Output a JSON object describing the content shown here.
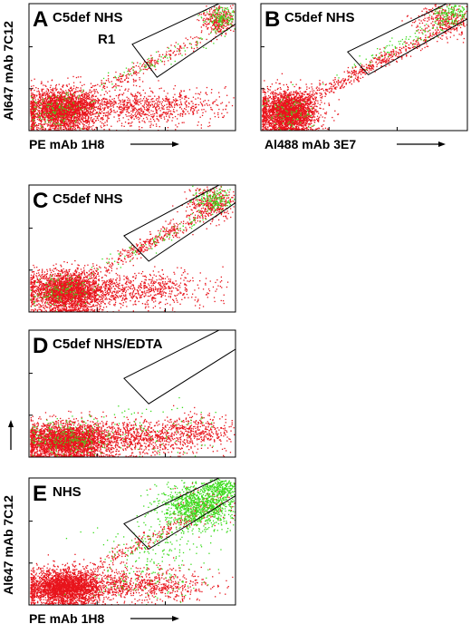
{
  "colors": {
    "red": "#e8141c",
    "green": "#3cdc1e",
    "frame": "#000000",
    "gate": "#000000"
  },
  "chart_data": [
    {
      "type": "scatter",
      "panel_letter": "A",
      "title": "C5def NHS",
      "gate_label": "R1",
      "xlabel": "PE mAb 1H8",
      "ylabel": "Al647 mAb 7C12",
      "xscale": "log",
      "yscale": "log",
      "xlim": [
        0,
        1
      ],
      "ylim": [
        0,
        1
      ],
      "series": [
        {
          "color": "red",
          "clusters": [
            {
              "cx": 0.16,
              "cy": 0.17,
              "sx": 0.09,
              "sy": 0.08,
              "n": 2600
            },
            {
              "cx": 0.55,
              "cy": 0.19,
              "sx": 0.2,
              "sy": 0.07,
              "n": 900
            },
            {
              "cx": 0.55,
              "cy": 0.5,
              "sx": 0.17,
              "sy": 0.14,
              "n": 260,
              "diag": true
            },
            {
              "cx": 0.92,
              "cy": 0.88,
              "sx": 0.04,
              "sy": 0.06,
              "n": 320
            }
          ]
        },
        {
          "color": "green",
          "clusters": [
            {
              "cx": 0.14,
              "cy": 0.17,
              "sx": 0.07,
              "sy": 0.07,
              "n": 120
            },
            {
              "cx": 0.6,
              "cy": 0.55,
              "sx": 0.2,
              "sy": 0.15,
              "n": 80,
              "diag": true
            },
            {
              "cx": 0.93,
              "cy": 0.9,
              "sx": 0.04,
              "sy": 0.05,
              "n": 140
            }
          ]
        }
      ]
    },
    {
      "type": "scatter",
      "panel_letter": "B",
      "title": "C5def NHS",
      "xlabel": "Al488 mAb 3E7",
      "ylabel": "",
      "xscale": "log",
      "yscale": "log",
      "xlim": [
        0,
        1
      ],
      "ylim": [
        0,
        1
      ],
      "series": [
        {
          "color": "red",
          "clusters": [
            {
              "cx": 0.13,
              "cy": 0.15,
              "sx": 0.07,
              "sy": 0.08,
              "n": 2600
            },
            {
              "cx": 0.52,
              "cy": 0.5,
              "sx": 0.22,
              "sy": 0.18,
              "n": 520,
              "diag": true
            },
            {
              "cx": 0.88,
              "cy": 0.88,
              "sx": 0.07,
              "sy": 0.07,
              "n": 360
            }
          ]
        },
        {
          "color": "green",
          "clusters": [
            {
              "cx": 0.13,
              "cy": 0.15,
              "sx": 0.06,
              "sy": 0.07,
              "n": 80
            },
            {
              "cx": 0.7,
              "cy": 0.7,
              "sx": 0.15,
              "sy": 0.13,
              "n": 90,
              "diag": true
            },
            {
              "cx": 0.92,
              "cy": 0.93,
              "sx": 0.05,
              "sy": 0.05,
              "n": 140
            }
          ]
        }
      ]
    },
    {
      "type": "scatter",
      "panel_letter": "C",
      "title": "C5def NHS",
      "xlabel": "",
      "ylabel": "",
      "xscale": "log",
      "yscale": "log",
      "xlim": [
        0,
        1
      ],
      "ylim": [
        0,
        1
      ],
      "series": [
        {
          "color": "red",
          "clusters": [
            {
              "cx": 0.18,
              "cy": 0.16,
              "sx": 0.09,
              "sy": 0.08,
              "n": 2600
            },
            {
              "cx": 0.55,
              "cy": 0.18,
              "sx": 0.18,
              "sy": 0.07,
              "n": 700
            },
            {
              "cx": 0.6,
              "cy": 0.56,
              "sx": 0.17,
              "sy": 0.15,
              "n": 380,
              "diag": true
            },
            {
              "cx": 0.88,
              "cy": 0.86,
              "sx": 0.06,
              "sy": 0.07,
              "n": 380
            }
          ]
        },
        {
          "color": "green",
          "clusters": [
            {
              "cx": 0.16,
              "cy": 0.16,
              "sx": 0.08,
              "sy": 0.07,
              "n": 110
            },
            {
              "cx": 0.62,
              "cy": 0.58,
              "sx": 0.18,
              "sy": 0.15,
              "n": 90,
              "diag": true
            },
            {
              "cx": 0.9,
              "cy": 0.9,
              "sx": 0.05,
              "sy": 0.05,
              "n": 160
            }
          ]
        }
      ]
    },
    {
      "type": "scatter",
      "panel_letter": "D",
      "title": "C5def NHS/EDTA",
      "xlabel": "",
      "ylabel": "",
      "xscale": "log",
      "yscale": "log",
      "xlim": [
        0,
        1
      ],
      "ylim": [
        0,
        1
      ],
      "series": [
        {
          "color": "red",
          "clusters": [
            {
              "cx": 0.18,
              "cy": 0.13,
              "sx": 0.11,
              "sy": 0.07,
              "n": 3000
            },
            {
              "cx": 0.55,
              "cy": 0.16,
              "sx": 0.2,
              "sy": 0.07,
              "n": 900
            },
            {
              "cx": 0.82,
              "cy": 0.22,
              "sx": 0.1,
              "sy": 0.06,
              "n": 250
            }
          ]
        },
        {
          "color": "green",
          "clusters": [
            {
              "cx": 0.18,
              "cy": 0.15,
              "sx": 0.1,
              "sy": 0.07,
              "n": 200
            },
            {
              "cx": 0.55,
              "cy": 0.22,
              "sx": 0.18,
              "sy": 0.1,
              "n": 80
            }
          ]
        }
      ]
    },
    {
      "type": "scatter",
      "panel_letter": "E",
      "title": "NHS",
      "xlabel": "PE mAb 1H8",
      "ylabel": "Al647 mAb 7C12",
      "xscale": "log",
      "yscale": "log",
      "xlim": [
        0,
        1
      ],
      "ylim": [
        0,
        1
      ],
      "series": [
        {
          "color": "red",
          "clusters": [
            {
              "cx": 0.17,
              "cy": 0.14,
              "sx": 0.09,
              "sy": 0.07,
              "n": 2600
            },
            {
              "cx": 0.52,
              "cy": 0.16,
              "sx": 0.18,
              "sy": 0.06,
              "n": 800
            },
            {
              "cx": 0.55,
              "cy": 0.5,
              "sx": 0.18,
              "sy": 0.16,
              "n": 240,
              "diag": true
            },
            {
              "cx": 0.85,
              "cy": 0.78,
              "sx": 0.08,
              "sy": 0.08,
              "n": 120
            }
          ]
        },
        {
          "color": "green",
          "clusters": [
            {
              "cx": 0.82,
              "cy": 0.78,
              "sx": 0.09,
              "sy": 0.09,
              "n": 1100
            },
            {
              "cx": 0.93,
              "cy": 0.93,
              "sx": 0.04,
              "sy": 0.04,
              "n": 250
            },
            {
              "cx": 0.6,
              "cy": 0.45,
              "sx": 0.14,
              "sy": 0.12,
              "n": 180
            },
            {
              "cx": 0.6,
              "cy": 0.15,
              "sx": 0.15,
              "sy": 0.07,
              "n": 60
            }
          ]
        }
      ]
    }
  ]
}
